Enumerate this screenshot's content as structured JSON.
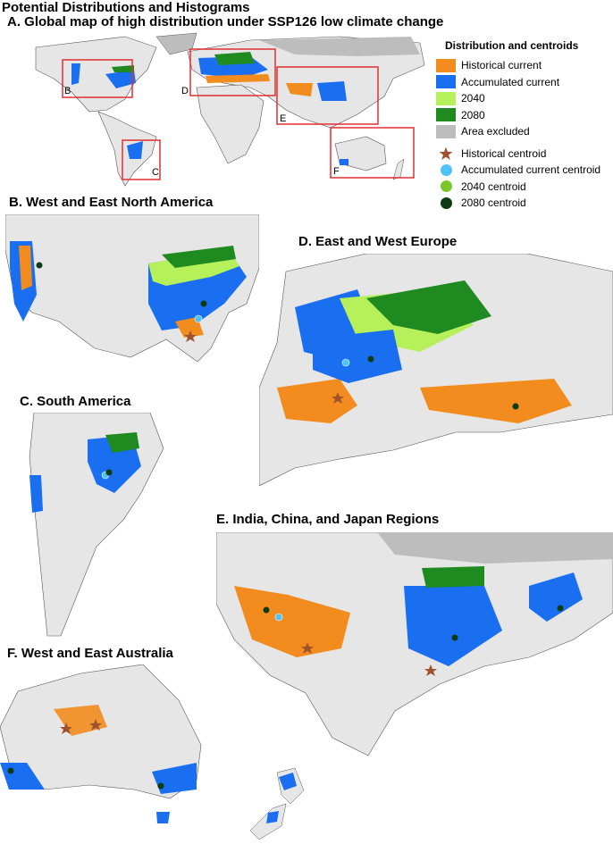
{
  "figure_title": "Potential Distributions and Histograms",
  "panels": {
    "a": "A. Global map of high distribution under SSP126 low climate change",
    "b": "B. West and East North America",
    "c": "C. South America",
    "d": "D. East and West Europe",
    "e": "E. India, China, and Japan Regions",
    "f": "F. West and East Australia"
  },
  "map_box_labels": [
    "B",
    "C",
    "D",
    "E",
    "F"
  ],
  "legend": {
    "title": "Distribution and centroids",
    "areas": [
      {
        "label": "Historical current",
        "color": "#f28c1f"
      },
      {
        "label": "Accumulated current",
        "color": "#1a6ff0"
      },
      {
        "label": "2040",
        "color": "#b6f05a"
      },
      {
        "label": "2080",
        "color": "#1f8a1f"
      },
      {
        "label": "Area excluded",
        "color": "#bdbdbd"
      }
    ],
    "centroids": [
      {
        "label": "Historical centroid",
        "color": "#a0522d",
        "shape": "star"
      },
      {
        "label": "Accumulated current centroid",
        "color": "#4fc3f7",
        "shape": "circle"
      },
      {
        "label": "2040 centroid",
        "color": "#7cc52a",
        "shape": "circle"
      },
      {
        "label": "2080 centroid",
        "color": "#0d3b14",
        "shape": "circle"
      }
    ]
  },
  "colors": {
    "land": "#e6e6e6",
    "border": "#333333",
    "box": "#e03030"
  }
}
